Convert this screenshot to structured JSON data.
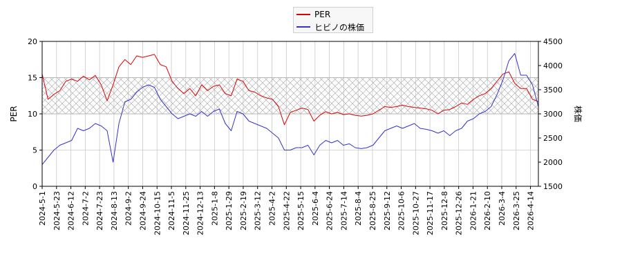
{
  "chart_data": {
    "type": "line",
    "x_ticks": [
      "2024-5-1",
      "2024-5-23",
      "2024-6-12",
      "2024-7-2",
      "2024-7-23",
      "2024-8-13",
      "2024-9-2",
      "2024-9-24",
      "2024-10-15",
      "2024-11-5",
      "2024-11-25",
      "2024-12-13",
      "2025-1-8",
      "2025-1-29",
      "2025-2-19",
      "2025-3-12",
      "2025-4-2",
      "2025-4-22",
      "2025-5-15",
      "2025-6-4",
      "2025-6-24",
      "2025-7-14",
      "2025-8-4",
      "2025-8-25",
      "2025-9-12",
      "2025-10-6",
      "2025-10-27",
      "2025-11-17",
      "2025-12-8",
      "2025-12-26",
      "2026-1-21",
      "2026-2-10",
      "2026-3-4",
      "2026-3-25",
      "2026-4-14"
    ],
    "y_left": {
      "label": "PER",
      "ticks": [
        "0",
        "5",
        "10",
        "15",
        "20"
      ],
      "lim": [
        0,
        20
      ]
    },
    "y_right": {
      "label": "株価",
      "ticks": [
        "1500",
        "2000",
        "2500",
        "3000",
        "3500",
        "4000",
        "4500"
      ],
      "lim": [
        1500,
        4500
      ]
    },
    "band": {
      "axis": "left",
      "from": 10,
      "to": 15,
      "pattern": "crosshatch"
    },
    "grid": true,
    "legend": {
      "position": "top-center"
    },
    "series": [
      {
        "name": "PER",
        "axis": "left",
        "color": "#dd0000",
        "values": [
          15.5,
          12.0,
          12.7,
          13.2,
          14.5,
          14.8,
          14.5,
          15.2,
          14.7,
          15.3,
          14.0,
          11.8,
          14.0,
          16.5,
          17.5,
          16.8,
          18.0,
          17.8,
          18.0,
          18.2,
          16.8,
          16.5,
          14.5,
          13.5,
          12.8,
          13.5,
          12.5,
          14.0,
          13.2,
          13.8,
          14.0,
          12.8,
          12.5,
          14.8,
          14.5,
          13.2,
          13.0,
          12.5,
          12.2,
          12.0,
          11.0,
          8.5,
          10.2,
          10.5,
          10.8,
          10.6,
          9.0,
          9.8,
          10.3,
          10.0,
          10.2,
          9.9,
          10.0,
          9.8,
          9.7,
          9.8,
          10.0,
          10.5,
          11.0,
          10.9,
          11.0,
          11.2,
          11.0,
          10.9,
          10.8,
          10.7,
          10.5,
          10.0,
          10.5,
          10.6,
          11.0,
          11.5,
          11.3,
          12.0,
          12.5,
          12.8,
          13.5,
          14.5,
          15.5,
          15.8,
          14.2,
          13.5,
          13.5,
          12.0,
          11.7
        ]
      },
      {
        "name": "ヒビノの株価",
        "axis": "right",
        "color": "#3333cc",
        "values": [
          1950,
          2100,
          2250,
          2350,
          2400,
          2450,
          2700,
          2650,
          2700,
          2800,
          2750,
          2650,
          2000,
          2800,
          3250,
          3300,
          3450,
          3550,
          3600,
          3550,
          3300,
          3150,
          3000,
          2900,
          2950,
          3000,
          2950,
          3050,
          2950,
          3050,
          3100,
          2800,
          2650,
          3050,
          3000,
          2850,
          2800,
          2750,
          2700,
          2600,
          2500,
          2250,
          2250,
          2300,
          2300,
          2350,
          2150,
          2350,
          2450,
          2400,
          2450,
          2350,
          2380,
          2300,
          2280,
          2300,
          2350,
          2500,
          2650,
          2700,
          2750,
          2700,
          2750,
          2800,
          2700,
          2680,
          2650,
          2600,
          2650,
          2550,
          2650,
          2700,
          2850,
          2900,
          3000,
          3050,
          3150,
          3400,
          3700,
          4100,
          4250,
          3800,
          3800,
          3600,
          3150
        ]
      }
    ]
  }
}
